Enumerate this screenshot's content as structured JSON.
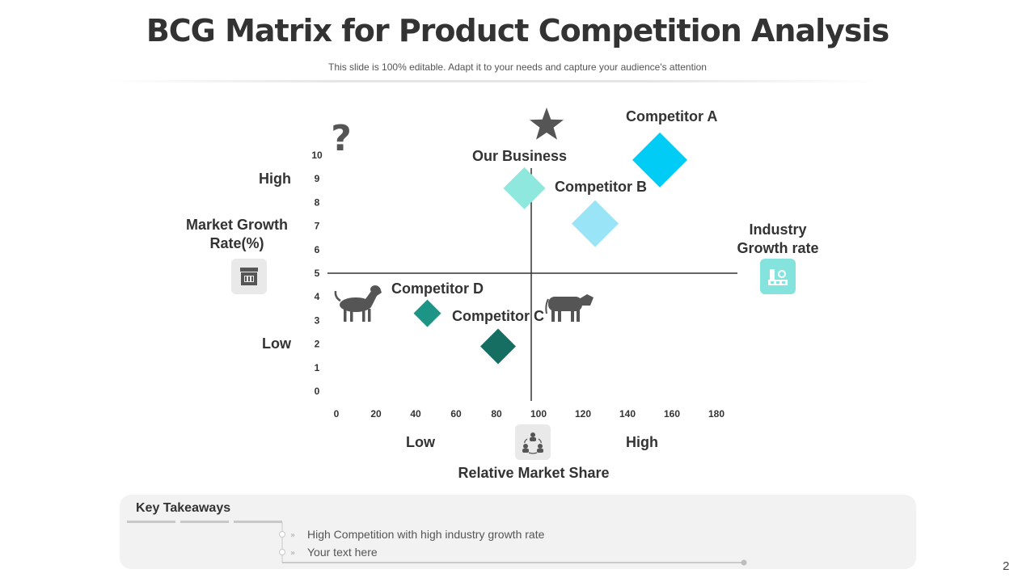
{
  "header": {
    "title": "BCG Matrix for Product Competition Analysis",
    "subtitle": "This slide is 100% editable. Adapt it to your needs and capture your audience's attention"
  },
  "chart_data": {
    "type": "scatter",
    "xlabel": "Relative Market Share",
    "ylabel": "Market Growth Rate(%)",
    "x_ticks": [
      "0",
      "20",
      "40",
      "60",
      "80",
      "100",
      "120",
      "140",
      "160",
      "180"
    ],
    "y_ticks": [
      "0",
      "1",
      "2",
      "3",
      "4",
      "5",
      "6",
      "7",
      "8",
      "9",
      "10"
    ],
    "xlim": [
      0,
      180
    ],
    "ylim": [
      0,
      10
    ],
    "quadrant_split": {
      "x": 100,
      "y": 5
    },
    "y_low_label": "Low",
    "y_high_label": "High",
    "x_low_label": "Low",
    "x_high_label": "High",
    "right_label": "Industry Growth rate",
    "points": [
      {
        "name": "Competitor A",
        "x": 160,
        "y": 9.8,
        "color": "#00ccf5",
        "size": 34
      },
      {
        "name": "Our Business",
        "x": 93,
        "y": 8.6,
        "color": "#8ee8de",
        "size": 26
      },
      {
        "name": "Competitor B",
        "x": 128,
        "y": 7.1,
        "color": "#99e4f7",
        "size": 29
      },
      {
        "name": "Competitor D",
        "x": 45,
        "y": 3.3,
        "color": "#1c9486",
        "size": 17
      },
      {
        "name": "Competitor C",
        "x": 80,
        "y": 1.9,
        "color": "#166e62",
        "size": 22
      }
    ],
    "quadrant_icons": [
      "question-icon",
      "star-icon",
      "dog-icon",
      "cow-icon"
    ]
  },
  "takeaways": {
    "title": "Key Takeaways",
    "items": [
      "High Competition with high industry growth rate",
      "Your text here"
    ]
  },
  "page_number": "2",
  "colors": {
    "icon_gray": "#555555",
    "icon_box_gray": "#e9e9e9",
    "icon_box_teal": "#84e3dd"
  }
}
